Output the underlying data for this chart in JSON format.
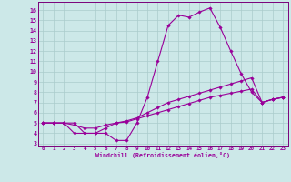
{
  "xlabel": "Windchill (Refroidissement éolien,°C)",
  "background_color": "#cce8e8",
  "grid_color": "#aacccc",
  "line_color": "#990099",
  "spine_color": "#7a007a",
  "xlim": [
    -0.5,
    23.5
  ],
  "ylim": [
    2.8,
    16.8
  ],
  "xticks": [
    0,
    1,
    2,
    3,
    4,
    5,
    6,
    7,
    8,
    9,
    10,
    11,
    12,
    13,
    14,
    15,
    16,
    17,
    18,
    19,
    20,
    21,
    22,
    23
  ],
  "yticks": [
    3,
    4,
    5,
    6,
    7,
    8,
    9,
    10,
    11,
    12,
    13,
    14,
    15,
    16
  ],
  "series": [
    {
      "x": [
        0,
        1,
        2,
        3,
        4,
        5,
        6,
        7,
        8,
        9,
        10,
        11,
        12,
        13,
        14,
        15,
        16,
        17,
        18,
        19,
        20,
        21,
        22,
        23
      ],
      "y": [
        5,
        5,
        5,
        5,
        4,
        4,
        4,
        3.3,
        3.3,
        5,
        7.5,
        11,
        14.5,
        15.5,
        15.3,
        15.8,
        16.2,
        14.3,
        12,
        9.8,
        8,
        7,
        7.3,
        7.5
      ]
    },
    {
      "x": [
        0,
        1,
        2,
        3,
        4,
        5,
        6,
        7,
        8,
        9,
        10,
        11,
        12,
        13,
        14,
        15,
        16,
        17,
        18,
        19,
        20,
        21,
        22,
        23
      ],
      "y": [
        5,
        5,
        5,
        4,
        4,
        4,
        4.5,
        5,
        5.2,
        5.5,
        6,
        6.5,
        7,
        7.3,
        7.6,
        7.9,
        8.2,
        8.5,
        8.8,
        9.1,
        9.4,
        7,
        7.3,
        7.5
      ]
    },
    {
      "x": [
        0,
        1,
        2,
        3,
        4,
        5,
        6,
        7,
        8,
        9,
        10,
        11,
        12,
        13,
        14,
        15,
        16,
        17,
        18,
        19,
        20,
        21,
        22,
        23
      ],
      "y": [
        5,
        5,
        5,
        4.8,
        4.5,
        4.5,
        4.8,
        5,
        5.1,
        5.4,
        5.7,
        6,
        6.3,
        6.6,
        6.9,
        7.2,
        7.5,
        7.7,
        7.9,
        8.1,
        8.3,
        7,
        7.3,
        7.5
      ]
    }
  ]
}
